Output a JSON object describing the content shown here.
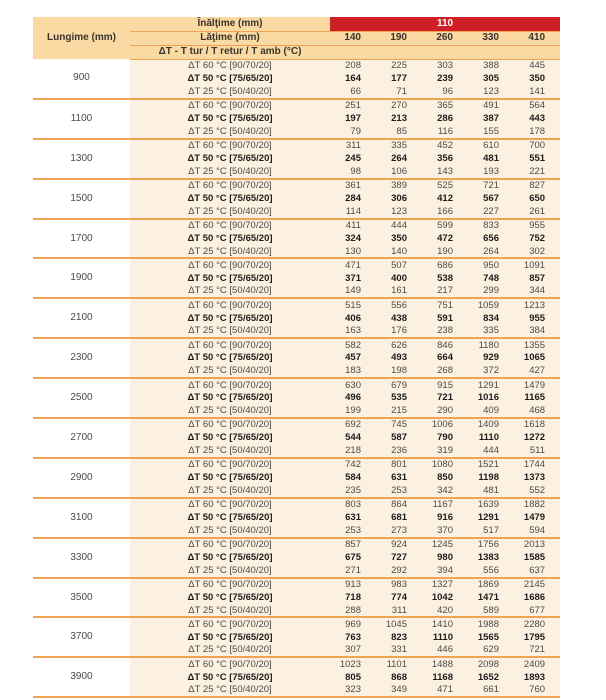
{
  "colors": {
    "header_bg": "#fbd9a3",
    "red_band_bg": "#cd2127",
    "red_band_text": "#ffffff",
    "data_bg": "#fcf1e0",
    "separator_line": "#f0a355",
    "text_regular": "#4a4a4a",
    "text_bold": "#1d1d1d"
  },
  "table": {
    "corner_label": "Lungime (mm)",
    "height_label": "Înălţime (mm)",
    "height_value": "110",
    "width_label": "Lăţime (mm)",
    "width_values": [
      "140",
      "190",
      "260",
      "330",
      "410"
    ],
    "dt_label": "ΔT - T tur / T retur / T amb (°C)",
    "row_labels": [
      "ΔT 60 °C [90/70/20]",
      "ΔT 50 °C [75/65/20]",
      "ΔT 25 °C [50/40/20]"
    ],
    "groups": [
      {
        "length": "900",
        "dt60": [
          208,
          225,
          303,
          388,
          445
        ],
        "dt50": [
          164,
          177,
          239,
          305,
          350
        ],
        "dt25": [
          66,
          71,
          96,
          123,
          141
        ]
      },
      {
        "length": "1100",
        "dt60": [
          251,
          270,
          365,
          491,
          564
        ],
        "dt50": [
          197,
          213,
          286,
          387,
          443
        ],
        "dt25": [
          79,
          85,
          116,
          155,
          178
        ]
      },
      {
        "length": "1300",
        "dt60": [
          311,
          335,
          452,
          610,
          700
        ],
        "dt50": [
          245,
          264,
          356,
          481,
          551
        ],
        "dt25": [
          98,
          106,
          143,
          193,
          221
        ]
      },
      {
        "length": "1500",
        "dt60": [
          361,
          389,
          525,
          721,
          827
        ],
        "dt50": [
          284,
          306,
          412,
          567,
          650
        ],
        "dt25": [
          114,
          123,
          166,
          227,
          261
        ]
      },
      {
        "length": "1700",
        "dt60": [
          411,
          444,
          599,
          833,
          955
        ],
        "dt50": [
          324,
          350,
          472,
          656,
          752
        ],
        "dt25": [
          130,
          140,
          190,
          264,
          302
        ]
      },
      {
        "length": "1900",
        "dt60": [
          471,
          507,
          686,
          950,
          1091
        ],
        "dt50": [
          371,
          400,
          538,
          748,
          857
        ],
        "dt25": [
          149,
          161,
          217,
          299,
          344
        ]
      },
      {
        "length": "2100",
        "dt60": [
          515,
          556,
          751,
          1059,
          1213
        ],
        "dt50": [
          406,
          438,
          591,
          834,
          955
        ],
        "dt25": [
          163,
          176,
          238,
          335,
          384
        ]
      },
      {
        "length": "2300",
        "dt60": [
          582,
          626,
          846,
          1180,
          1355
        ],
        "dt50": [
          457,
          493,
          664,
          929,
          1065
        ],
        "dt25": [
          183,
          198,
          268,
          372,
          427
        ]
      },
      {
        "length": "2500",
        "dt60": [
          630,
          679,
          915,
          1291,
          1479
        ],
        "dt50": [
          496,
          535,
          721,
          1016,
          1165
        ],
        "dt25": [
          199,
          215,
          290,
          409,
          468
        ]
      },
      {
        "length": "2700",
        "dt60": [
          692,
          745,
          1006,
          1409,
          1618
        ],
        "dt50": [
          544,
          587,
          790,
          1110,
          1272
        ],
        "dt25": [
          218,
          236,
          319,
          444,
          511
        ]
      },
      {
        "length": "2900",
        "dt60": [
          742,
          801,
          1080,
          1521,
          1744
        ],
        "dt50": [
          584,
          631,
          850,
          1198,
          1373
        ],
        "dt25": [
          235,
          253,
          342,
          481,
          552
        ]
      },
      {
        "length": "3100",
        "dt60": [
          803,
          864,
          1167,
          1639,
          1882
        ],
        "dt50": [
          631,
          681,
          916,
          1291,
          1479
        ],
        "dt25": [
          253,
          273,
          370,
          517,
          594
        ]
      },
      {
        "length": "3300",
        "dt60": [
          857,
          924,
          1245,
          1756,
          2013
        ],
        "dt50": [
          675,
          727,
          980,
          1383,
          1585
        ],
        "dt25": [
          271,
          292,
          394,
          556,
          637
        ]
      },
      {
        "length": "3500",
        "dt60": [
          913,
          983,
          1327,
          1869,
          2145
        ],
        "dt50": [
          718,
          774,
          1042,
          1471,
          1686
        ],
        "dt25": [
          288,
          311,
          420,
          589,
          677
        ]
      },
      {
        "length": "3700",
        "dt60": [
          969,
          1045,
          1410,
          1988,
          2280
        ],
        "dt50": [
          763,
          823,
          1110,
          1565,
          1795
        ],
        "dt25": [
          307,
          331,
          446,
          629,
          721
        ]
      },
      {
        "length": "3900",
        "dt60": [
          1023,
          1101,
          1488,
          2098,
          2409
        ],
        "dt50": [
          805,
          868,
          1168,
          1652,
          1893
        ],
        "dt25": [
          323,
          349,
          471,
          661,
          760
        ]
      }
    ]
  }
}
